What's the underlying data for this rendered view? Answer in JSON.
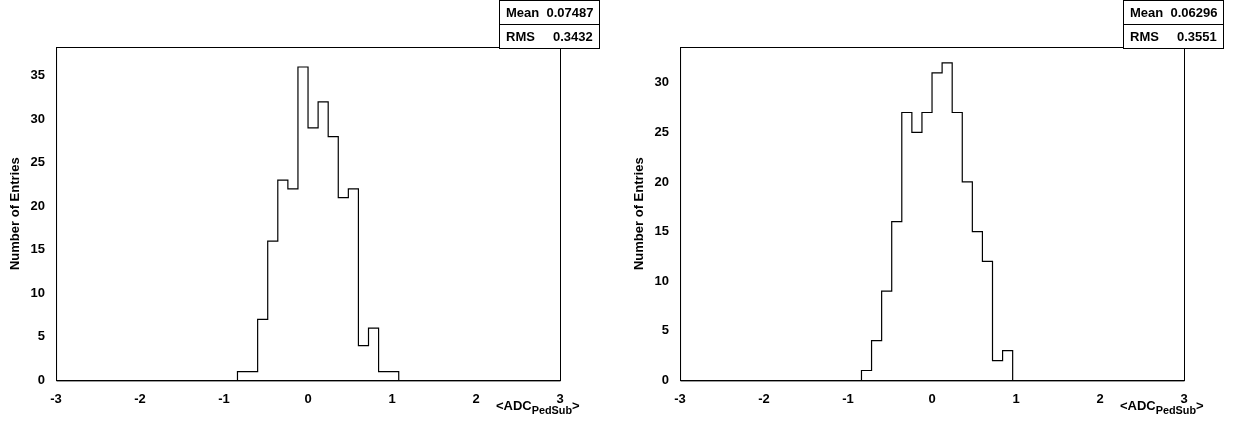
{
  "chart_data": [
    {
      "type": "histogram",
      "bins": [
        -0.84,
        -0.72,
        -0.6,
        -0.48,
        -0.36,
        -0.24,
        -0.12,
        0,
        0.12,
        0.24,
        0.36,
        0.48,
        0.6,
        0.72,
        0.84,
        0.96,
        1.08
      ],
      "values": [
        1,
        1,
        7,
        16,
        23,
        22,
        36,
        29,
        32,
        28,
        21,
        22,
        4,
        6,
        1,
        1
      ],
      "color": "#000000",
      "xlabel": "<ADC$_{PedSub}$>",
      "ylabel": "Number of Entries",
      "xlim": [
        -3,
        3
      ],
      "ylim": [
        0,
        38.3
      ],
      "xticks": [
        -3,
        -2,
        -1,
        0,
        1,
        2,
        3
      ],
      "yticks": [
        0,
        5,
        10,
        15,
        20,
        25,
        30,
        35
      ],
      "annotations": [
        "Mean  0.07487",
        "RMS     0.3432"
      ],
      "grid": false,
      "legend": false
    },
    {
      "type": "histogram",
      "bins": [
        -0.84,
        -0.72,
        -0.6,
        -0.48,
        -0.36,
        -0.24,
        -0.12,
        0,
        0.12,
        0.24,
        0.36,
        0.48,
        0.6,
        0.72,
        0.84,
        0.96
      ],
      "values": [
        1,
        4,
        9,
        16,
        27,
        25,
        27,
        31,
        32,
        27,
        20,
        15,
        12,
        2,
        3
      ],
      "color": "#000000",
      "xlabel": "<ADC$_{PedSub}$>",
      "ylabel": "Number of Entries",
      "xlim": [
        -3,
        3
      ],
      "ylim": [
        0,
        33.6
      ],
      "xticks": [
        -3,
        -2,
        -1,
        0,
        1,
        2,
        3
      ],
      "yticks": [
        0,
        5,
        10,
        15,
        20,
        25,
        30
      ],
      "annotations": [
        "Mean  0.06296",
        "RMS     0.3551"
      ],
      "grid": false,
      "legend": false
    }
  ]
}
